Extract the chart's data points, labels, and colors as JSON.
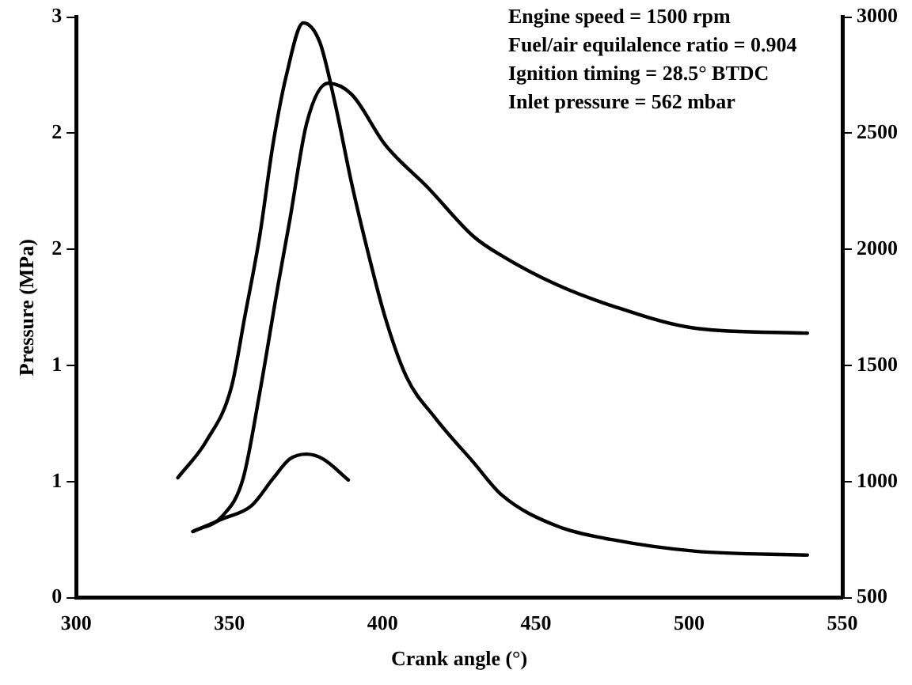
{
  "chart_data": {
    "type": "line",
    "xlabel": "Crank angle (°)",
    "ylabel": "Pressure (MPa)",
    "annotations": [
      "Engine speed = 1500 rpm",
      "Fuel/air equilalence ratio = 0.904",
      "Ignition timing = 28.5° BTDC",
      "Inlet pressure = 562 mbar"
    ],
    "xlim": [
      300,
      550
    ],
    "xticks": [
      300,
      350,
      400,
      450,
      500,
      550
    ],
    "ylim": [
      0,
      3
    ],
    "yticks": [
      0,
      {
        "value": 0.6,
        "label": "1"
      },
      {
        "value": 1.2,
        "label": "1"
      },
      {
        "value": 1.8,
        "label": "2"
      },
      {
        "value": 2.4,
        "label": "2"
      },
      3
    ],
    "y2lim": [
      500,
      3000
    ],
    "y2ticks": [
      500,
      1000,
      1500,
      2000,
      2500,
      3000
    ],
    "grid": false,
    "legend": false,
    "marker": "none",
    "line_style": "solid",
    "series": [
      {
        "color": "#000000",
        "x": [
          333.2,
          342.5,
          350.7,
          355.0,
          359.9,
          364.2,
          368.6,
          374.1,
          379.5,
          384.4,
          389.9,
          395.3,
          400.8,
          407.8,
          417.1,
          429.6,
          438.9,
          456.9,
          474.8,
          502.1,
          538.6
        ],
        "values": [
          0.62,
          0.81,
          1.09,
          1.45,
          1.87,
          2.34,
          2.7,
          2.97,
          2.87,
          2.56,
          2.14,
          1.78,
          1.45,
          1.14,
          0.93,
          0.7,
          0.53,
          0.37,
          0.3,
          0.24,
          0.22
        ]
      },
      {
        "color": "#000000",
        "axis": "y2",
        "x": [
          338.1,
          347.9,
          354.5,
          359.9,
          365.9,
          369.7,
          375.2,
          382.2,
          389.9,
          400.8,
          414.9,
          429.6,
          438.9,
          456.9,
          474.8,
          502.1,
          538.6
        ],
        "values": [
          785,
          854,
          1014,
          1382,
          1847,
          2125,
          2542,
          2715,
          2667,
          2451,
          2264,
          2056,
          1972,
          1847,
          1757,
          1660,
          1639
        ]
      },
      {
        "color": "#000000",
        "axis": "y2",
        "x": [
          338.1,
          347.9,
          357.2,
          364.3,
          369.7,
          375.2,
          380.6,
          388.8
        ],
        "values": [
          785,
          840,
          896,
          1014,
          1097,
          1118,
          1097,
          1007
        ]
      }
    ]
  }
}
